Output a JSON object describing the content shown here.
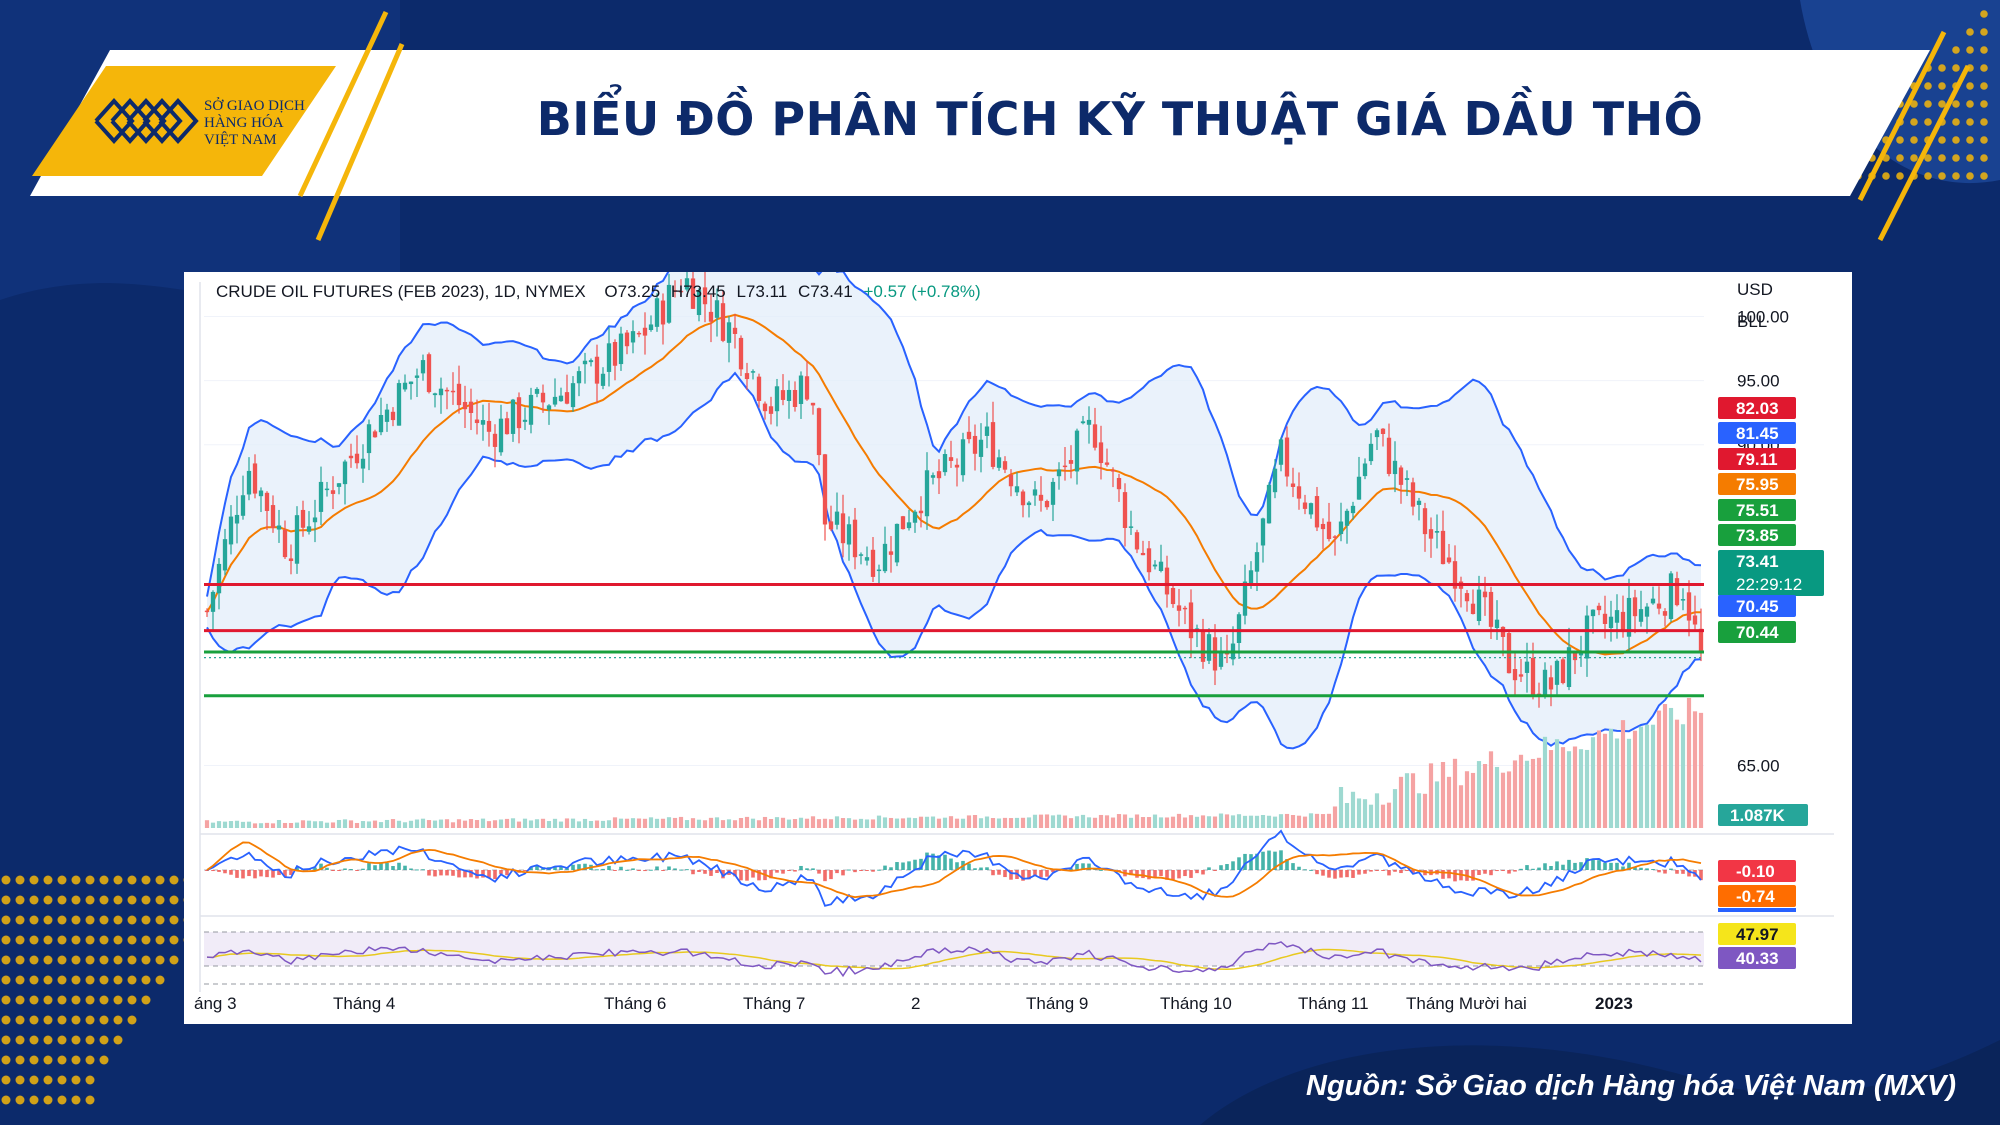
{
  "header": {
    "logo_lines": [
      "SỞ GIAO DỊCH",
      "HÀNG HÓA",
      "VIỆT NAM"
    ],
    "title": "BIỂU ĐỒ PHÂN TÍCH KỸ THUẬT GIÁ DẦU THÔ"
  },
  "source": "Nguồn: Sở Giao dịch Hàng hóa Việt Nam (MXV)",
  "colors": {
    "navy": "#0c2a6b",
    "gold": "#f5b60a",
    "up": "#26a69a",
    "down": "#ef5350",
    "bollinger": "#2962ff",
    "ma": "#f57c00",
    "resistance": "#e0182f",
    "support": "#18a03d"
  },
  "chart_data": {
    "type": "candlestick",
    "symbol_line": {
      "name": "CRUDE OIL FUTURES (FEB 2023), 1D, NYMEX",
      "open": "O73.25",
      "high": "H73.45",
      "low": "L73.11",
      "close": "C73.41",
      "change": "+0.57 (+0.78%)"
    },
    "currency": "USD",
    "unit": "BLL",
    "y_ticks": [
      "100.00",
      "95.00",
      "90.00",
      "65.00"
    ],
    "ylim": [
      62,
      103
    ],
    "x_labels": [
      "áng 3",
      "Tháng 4",
      "Tháng 6",
      "Tháng 7",
      "2",
      "Tháng 9",
      "Tháng 10",
      "Tháng 11",
      "Tháng Mười hai",
      "2023"
    ],
    "price_path": [
      [
        0,
        77.0
      ],
      [
        0.03,
        88.5
      ],
      [
        0.06,
        82.0
      ],
      [
        0.12,
        91.0
      ],
      [
        0.16,
        96.0
      ],
      [
        0.21,
        91.0
      ],
      [
        0.27,
        94.5
      ],
      [
        0.32,
        98.0
      ],
      [
        0.355,
        103.0
      ],
      [
        0.39,
        99.0
      ],
      [
        0.42,
        93.0
      ],
      [
        0.45,
        95.0
      ],
      [
        0.46,
        84.0
      ],
      [
        0.5,
        81.0
      ],
      [
        0.53,
        86.0
      ],
      [
        0.58,
        90.5
      ],
      [
        0.62,
        85.0
      ],
      [
        0.66,
        91.5
      ],
      [
        0.69,
        83.0
      ],
      [
        0.73,
        76.0
      ],
      [
        0.76,
        72.5
      ],
      [
        0.8,
        89.0
      ],
      [
        0.84,
        82.0
      ],
      [
        0.87,
        91.0
      ],
      [
        0.91,
        83.0
      ],
      [
        0.94,
        79.0
      ],
      [
        0.97,
        73.0
      ],
      [
        1.0,
        71.0
      ],
      [
        1.03,
        75.5
      ],
      [
        1.065,
        77.0
      ],
      [
        1.1,
        79.0
      ],
      [
        1.113,
        73.41
      ]
    ],
    "price_levels": [
      {
        "value": "82.03",
        "color": "#e0182f",
        "line": false
      },
      {
        "value": "81.45",
        "color": "#2962ff",
        "line": false
      },
      {
        "value": "79.11",
        "color": "#e0182f",
        "line": true
      },
      {
        "value": "75.95",
        "color": "#f57c00",
        "line": false
      },
      {
        "value": "75.51",
        "color": "#e0182f",
        "line": true,
        "tag_color": "#18a03d"
      },
      {
        "value": "73.85",
        "color": "#18a03d",
        "line": true
      },
      {
        "value": "73.41",
        "color": "#089981",
        "line": false,
        "countdown": "22:29:12"
      },
      {
        "value": "70.45",
        "color": "#2962ff",
        "line": false
      },
      {
        "value": "70.44",
        "color": "#18a03d",
        "line": true
      }
    ],
    "volume_label": "1.087K",
    "macd": {
      "macd": "-0.10",
      "signal": "-0.74"
    },
    "rsi": {
      "value1": "47.97",
      "value2": "40.33"
    }
  }
}
